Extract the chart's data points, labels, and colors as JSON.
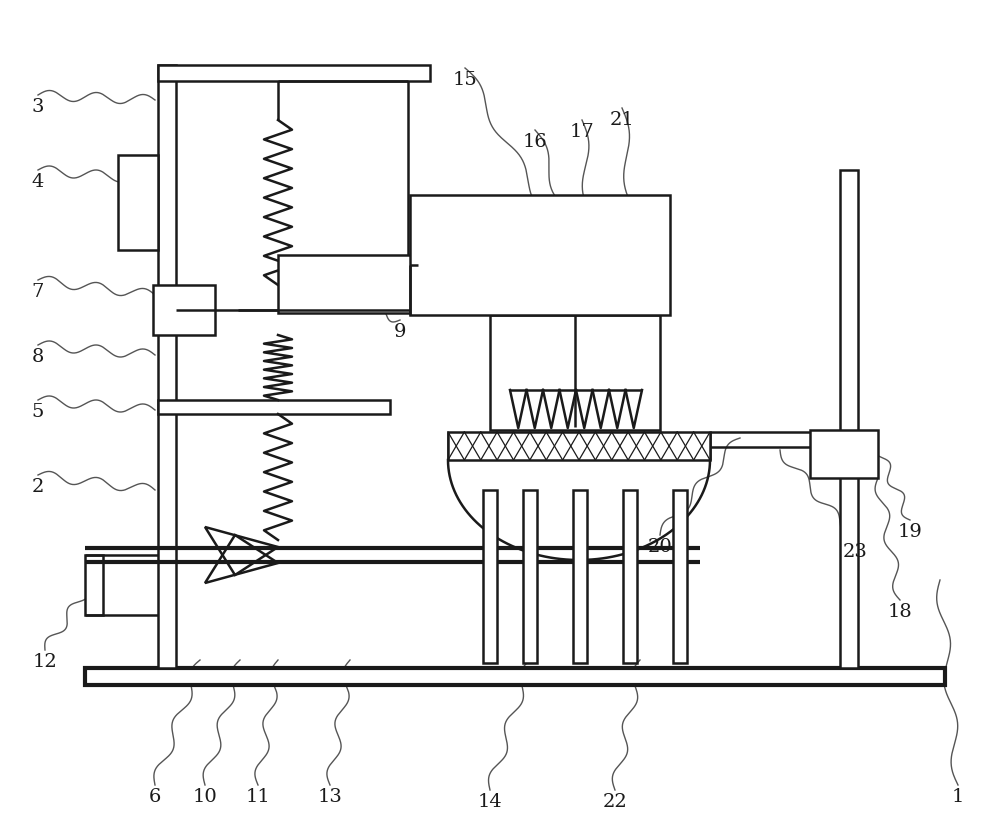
{
  "bg_color": "white",
  "line_color": "#1a1a1a",
  "label_color": "#1a1a1a",
  "fig_width": 10.0,
  "fig_height": 8.34,
  "lw_main": 1.8,
  "lw_thick": 3.0,
  "lw_thin": 1.2,
  "leader_color": "#555555"
}
